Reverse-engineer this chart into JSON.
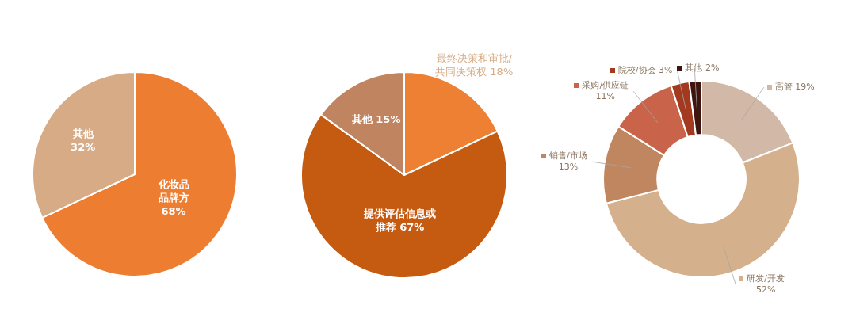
{
  "chart_data": [
    {
      "type": "pie",
      "categories": [
        "化妆品品牌方",
        "其他"
      ],
      "values": [
        68,
        32
      ],
      "colors": [
        "#ed7d31",
        "#d6ab85"
      ],
      "value_labels": [
        "68%",
        "32%"
      ]
    },
    {
      "type": "pie",
      "categories": [
        "最终决策和审批/共同决策权",
        "提供评估信息或推荐",
        "其他"
      ],
      "values": [
        18,
        67,
        15
      ],
      "colors": [
        "#ed8033",
        "#c55a11",
        "#c08560"
      ],
      "value_labels": [
        "18%",
        "67%",
        "15%"
      ]
    },
    {
      "type": "donut",
      "categories": [
        "高管",
        "研发/开发",
        "销售/市场",
        "采购/供应链",
        "院校/协会",
        "其他"
      ],
      "values": [
        19,
        52,
        13,
        11,
        3,
        2
      ],
      "colors": [
        "#d2b8a6",
        "#d5b08c",
        "#c0865f",
        "#c9644a",
        "#a33a1f",
        "#3f1510"
      ],
      "value_labels": [
        "19%",
        "52%",
        "13%",
        "11%",
        "3%",
        "2%"
      ],
      "legend": "top left"
    }
  ]
}
